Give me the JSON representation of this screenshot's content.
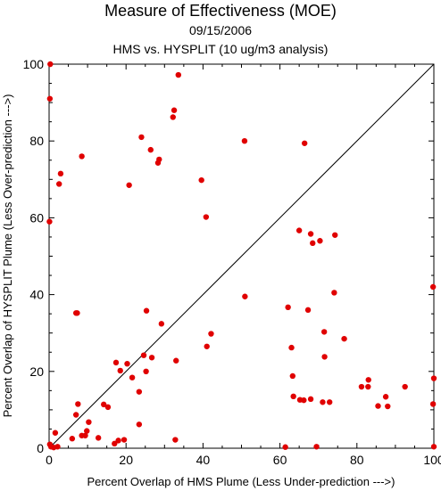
{
  "chart_data": {
    "type": "scatter",
    "title": "Measure of Effectiveness (MOE)",
    "date": "09/15/2006",
    "subtitle": "HMS vs. HYSPLIT  (10 ug/m3 analysis)",
    "xlabel": "Percent Overlap of HMS Plume (Less Under-prediction --->)",
    "ylabel": "Percent Overlap of HYSPLIT Plume (Less Over-prediction --->)",
    "xlim": [
      0,
      100
    ],
    "ylim": [
      0,
      100
    ],
    "xticks": [
      "0",
      "20",
      "40",
      "60",
      "80",
      "100"
    ],
    "yticks": [
      "0",
      "20",
      "40",
      "60",
      "80",
      "100"
    ],
    "reference_line": "y = x",
    "point_color": "#e00000",
    "points": [
      [
        0.3,
        100
      ],
      [
        0.2,
        91
      ],
      [
        0.1,
        59
      ],
      [
        2.6,
        68.8
      ],
      [
        3.0,
        71.5
      ],
      [
        8.5,
        76
      ],
      [
        7.0,
        35.2
      ],
      [
        7.3,
        35.2
      ],
      [
        7.5,
        11.5
      ],
      [
        7.0,
        8.7
      ],
      [
        6.0,
        2.5
      ],
      [
        0.2,
        1.0
      ],
      [
        0.5,
        0.4
      ],
      [
        1.2,
        0.2
      ],
      [
        1.6,
        4.0
      ],
      [
        2.2,
        0.4
      ],
      [
        8.5,
        3.3
      ],
      [
        9.4,
        3.3
      ],
      [
        9.8,
        4.5
      ],
      [
        10.3,
        6.8
      ],
      [
        12.8,
        2.7
      ],
      [
        14.2,
        11.4
      ],
      [
        15.3,
        10.7
      ],
      [
        17.0,
        1.2
      ],
      [
        17.4,
        22.3
      ],
      [
        18.0,
        2.0
      ],
      [
        18.5,
        20.2
      ],
      [
        19.5,
        2.2
      ],
      [
        20.3,
        22.0
      ],
      [
        20.8,
        68.5
      ],
      [
        21.6,
        18.4
      ],
      [
        23.4,
        14.7
      ],
      [
        23.4,
        6.2
      ],
      [
        24.0,
        81
      ],
      [
        24.6,
        24.2
      ],
      [
        25.3,
        35.8
      ],
      [
        25.2,
        20.0
      ],
      [
        26.4,
        77.7
      ],
      [
        26.7,
        23.6
      ],
      [
        28.3,
        74.3
      ],
      [
        28.6,
        75.2
      ],
      [
        29.2,
        32.4
      ],
      [
        32.2,
        86.2
      ],
      [
        32.5,
        88
      ],
      [
        32.8,
        2.2
      ],
      [
        33.0,
        22.8
      ],
      [
        33.6,
        97.2
      ],
      [
        39.6,
        69.8
      ],
      [
        40.8,
        60.2
      ],
      [
        41.0,
        26.5
      ],
      [
        42.1,
        29.8
      ],
      [
        50.8,
        80
      ],
      [
        50.9,
        39.5
      ],
      [
        61.4,
        0.3
      ],
      [
        62.1,
        36.7
      ],
      [
        63.0,
        26.2
      ],
      [
        63.3,
        18.8
      ],
      [
        63.5,
        13.5
      ],
      [
        65.0,
        56.7
      ],
      [
        65.2,
        12.6
      ],
      [
        66.2,
        12.5
      ],
      [
        66.4,
        79.4
      ],
      [
        67.3,
        36.0
      ],
      [
        68.0,
        12.8
      ],
      [
        68.0,
        55.8
      ],
      [
        68.5,
        53.4
      ],
      [
        69.5,
        0.4
      ],
      [
        70.4,
        54.0
      ],
      [
        71.1,
        12.0
      ],
      [
        71.5,
        30.3
      ],
      [
        71.6,
        23.8
      ],
      [
        72.9,
        12.0
      ],
      [
        74.1,
        40.5
      ],
      [
        74.3,
        55.5
      ],
      [
        76.7,
        28.5
      ],
      [
        81.2,
        16.0
      ],
      [
        82.9,
        16.0
      ],
      [
        83.0,
        17.8
      ],
      [
        85.5,
        11.0
      ],
      [
        87.5,
        13.4
      ],
      [
        88.0,
        10.9
      ],
      [
        92.5,
        16.0
      ],
      [
        99.8,
        42.0
      ],
      [
        100,
        18.2
      ],
      [
        99.8,
        11.5
      ],
      [
        100,
        0.4
      ]
    ]
  }
}
